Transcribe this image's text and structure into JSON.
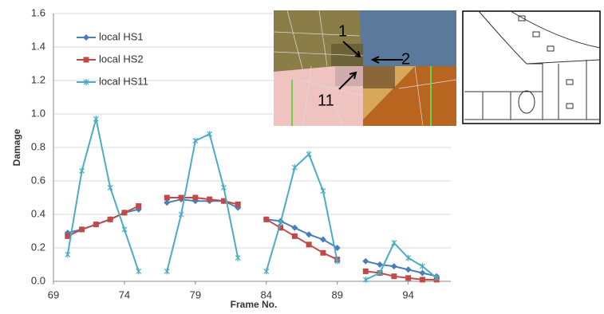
{
  "chart_data": {
    "type": "line",
    "x_label": "Frame No.",
    "y_label": "Damage",
    "x": [
      70,
      71,
      72,
      73,
      74,
      75,
      76,
      77,
      78,
      79,
      80,
      81,
      82,
      83,
      84,
      85,
      86,
      87,
      88,
      89,
      90,
      91,
      92,
      93,
      94,
      95,
      96
    ],
    "series": [
      {
        "name": "local HS1",
        "color": "#4a7ebb",
        "marker": "diamond",
        "values": [
          0.29,
          0.31,
          0.34,
          0.37,
          0.41,
          0.43,
          null,
          0.47,
          0.49,
          0.48,
          0.48,
          0.48,
          0.44,
          null,
          0.37,
          0.36,
          0.32,
          0.28,
          0.25,
          0.2,
          null,
          0.12,
          0.1,
          0.09,
          0.07,
          0.05,
          0.03
        ]
      },
      {
        "name": "local HS2",
        "color": "#be4b48",
        "marker": "square",
        "values": [
          0.27,
          0.31,
          0.34,
          0.37,
          0.41,
          0.45,
          null,
          0.5,
          0.5,
          0.5,
          0.49,
          0.48,
          0.46,
          null,
          0.37,
          0.32,
          0.27,
          0.22,
          0.17,
          0.13,
          null,
          0.06,
          0.05,
          0.03,
          0.02,
          0.01,
          0.01
        ]
      },
      {
        "name": "local HS11",
        "color": "#4bacc6",
        "marker": "star",
        "values": [
          0.16,
          0.66,
          0.97,
          0.56,
          0.31,
          0.06,
          null,
          0.06,
          0.4,
          0.84,
          0.88,
          0.56,
          0.14,
          null,
          0.06,
          0.35,
          0.68,
          0.76,
          0.54,
          0.12,
          null,
          0.01,
          0.05,
          0.23,
          0.14,
          0.09,
          0.02
        ]
      }
    ],
    "xlim": [
      69,
      97
    ],
    "xticks": [
      69,
      74,
      79,
      84,
      89,
      94
    ],
    "ylim": [
      0,
      1.6
    ],
    "yticks": [
      {
        "value": 0,
        "label": "0.0"
      },
      0.2,
      0.4,
      0.6,
      0.8,
      {
        "value": 1,
        "label": "1.0"
      },
      1.2,
      1.4,
      {
        "value": 1.6,
        "label": "1.6"
      }
    ],
    "grid": true,
    "legend": "top-left",
    "annotations": [
      "1",
      "2",
      "11"
    ]
  }
}
